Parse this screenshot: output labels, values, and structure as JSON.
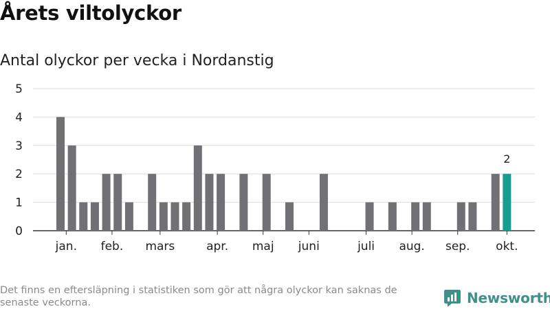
{
  "chart_data": {
    "type": "bar",
    "title": "Årets viltolyckor",
    "subtitle": "Antal olyckor per vecka i Nordanstig",
    "ylim": [
      0,
      5
    ],
    "yticks": [
      0,
      1,
      2,
      3,
      4,
      5
    ],
    "weeks": [
      1,
      2,
      3,
      4,
      5,
      6,
      7,
      8,
      9,
      10,
      11,
      12,
      13,
      14,
      15,
      16,
      17,
      18,
      19,
      20,
      21,
      22,
      23,
      24,
      25,
      26,
      27,
      28,
      29,
      30,
      31,
      32,
      33,
      34,
      35,
      36,
      37,
      38,
      39,
      40,
      41
    ],
    "values": [
      0,
      4,
      3,
      1,
      1,
      2,
      2,
      1,
      0,
      2,
      1,
      1,
      1,
      3,
      2,
      2,
      0,
      2,
      0,
      2,
      0,
      1,
      0,
      0,
      2,
      0,
      0,
      0,
      1,
      0,
      1,
      0,
      1,
      1,
      0,
      0,
      1,
      1,
      0,
      2,
      2
    ],
    "highlight_index": 40,
    "highlight_label": "2",
    "month_labels": [
      {
        "label": "jan.",
        "week": 2.5
      },
      {
        "label": "feb.",
        "week": 6.5
      },
      {
        "label": "mars",
        "week": 10.7
      },
      {
        "label": "apr.",
        "week": 15.7
      },
      {
        "label": "maj",
        "week": 19.7
      },
      {
        "label": "juni",
        "week": 23.7
      },
      {
        "label": "juli",
        "week": 28.7
      },
      {
        "label": "aug.",
        "week": 32.7
      },
      {
        "label": "sep.",
        "week": 36.7
      },
      {
        "label": "okt.",
        "week": 41
      }
    ],
    "colors": {
      "bar": "#717075",
      "highlight": "#13a08e",
      "grid": "#dddddd",
      "axis": "#333333"
    }
  },
  "footnote": "Det finns en eftersläpning i statistiken som gör att några olyckor kan saknas de senaste veckorna.",
  "brand": {
    "name": "Newsworthy",
    "icon": "newsworthy-logo-icon",
    "color": "#3f8f8a"
  }
}
